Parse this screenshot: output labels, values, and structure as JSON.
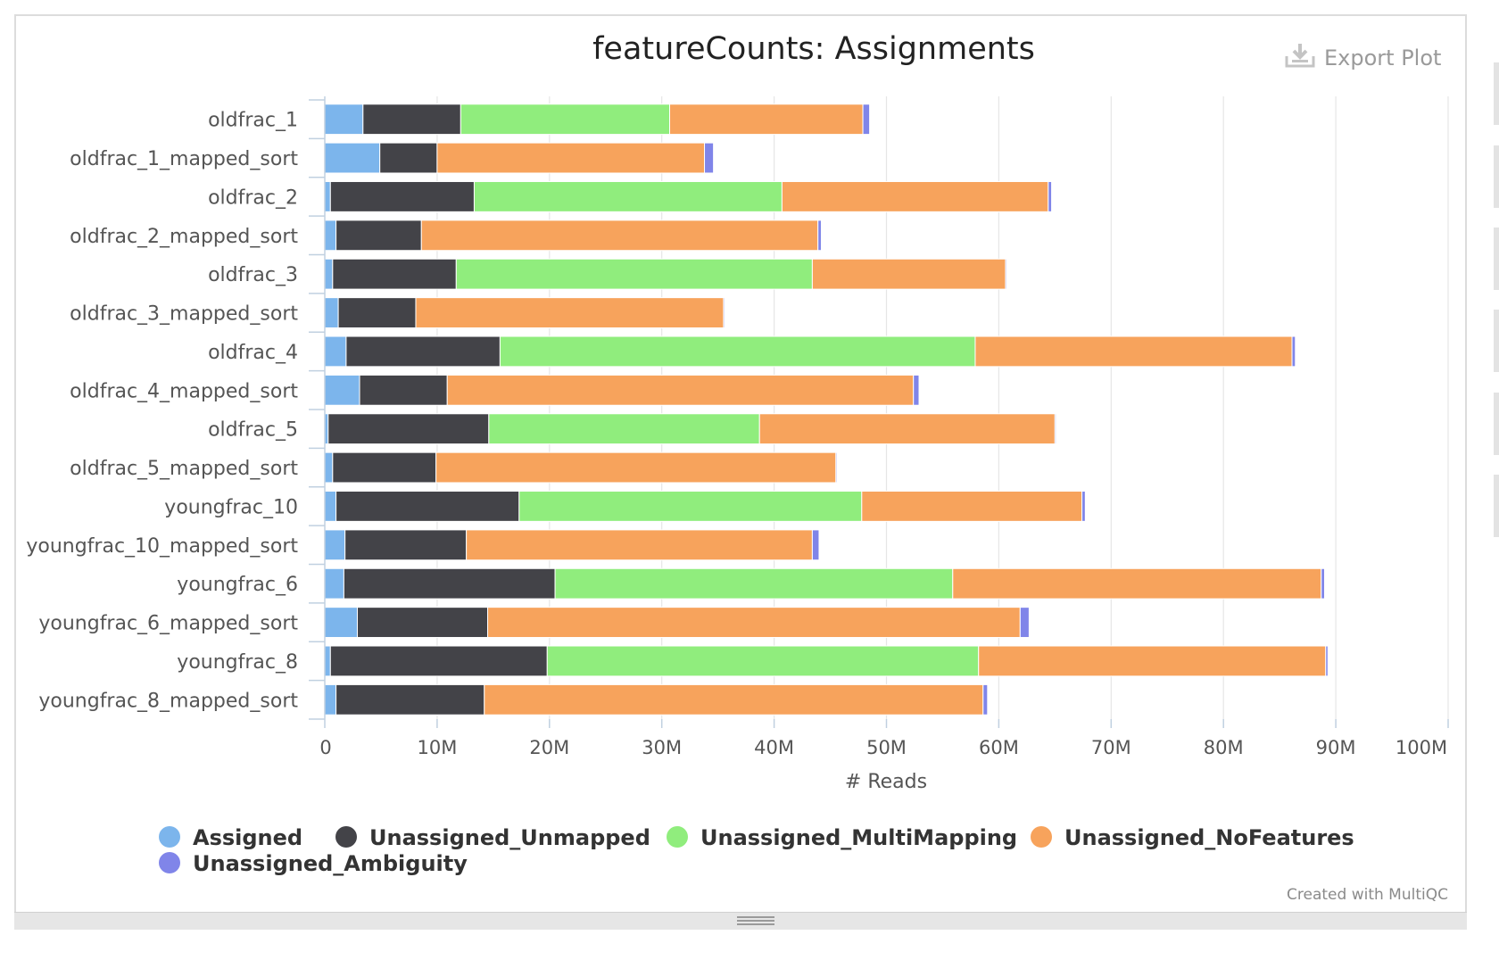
{
  "export": {
    "label": "Export Plot",
    "icon": "download-icon"
  },
  "credit": "Created with MultiQC",
  "colors": {
    "Assigned": "#7cb5ec",
    "Unassigned_Unmapped": "#434348",
    "Unassigned_MultiMapping": "#90ed7d",
    "Unassigned_NoFeatures": "#f7a35c",
    "Unassigned_Ambiguity": "#8085e9"
  },
  "chart_data": {
    "type": "bar",
    "orientation": "horizontal",
    "stacked": true,
    "title": "featureCounts: Assignments",
    "xlabel": "# Reads",
    "ylabel": "",
    "xlim": [
      0,
      100000000
    ],
    "xticks": [
      "0",
      "10M",
      "20M",
      "30M",
      "40M",
      "50M",
      "60M",
      "70M",
      "80M",
      "90M",
      "100M"
    ],
    "grid": true,
    "legend_position": "bottom",
    "categories": [
      "oldfrac_1",
      "oldfrac_1_mapped_sort",
      "oldfrac_2",
      "oldfrac_2_mapped_sort",
      "oldfrac_3",
      "oldfrac_3_mapped_sort",
      "oldfrac_4",
      "oldfrac_4_mapped_sort",
      "oldfrac_5",
      "oldfrac_5_mapped_sort",
      "youngfrac_10",
      "youngfrac_10_mapped_sort",
      "youngfrac_6",
      "youngfrac_6_mapped_sort",
      "youngfrac_8",
      "youngfrac_8_mapped_sort"
    ],
    "series": [
      {
        "name": "Assigned",
        "values": [
          3400000,
          4900000,
          500000,
          1000000,
          700000,
          1200000,
          1900000,
          3100000,
          300000,
          700000,
          1000000,
          1800000,
          1700000,
          2900000,
          500000,
          1000000
        ]
      },
      {
        "name": "Unassigned_Unmapped",
        "values": [
          8700000,
          5100000,
          12800000,
          7600000,
          11000000,
          6900000,
          13700000,
          7800000,
          14300000,
          9200000,
          16300000,
          10800000,
          18800000,
          11600000,
          19300000,
          13200000
        ]
      },
      {
        "name": "Unassigned_MultiMapping",
        "values": [
          18600000,
          0,
          27400000,
          0,
          31700000,
          0,
          42300000,
          0,
          24100000,
          0,
          30500000,
          0,
          35400000,
          0,
          38400000,
          0
        ]
      },
      {
        "name": "Unassigned_NoFeatures",
        "values": [
          17200000,
          23800000,
          23700000,
          35300000,
          17200000,
          27400000,
          28200000,
          41500000,
          26300000,
          35600000,
          19600000,
          30800000,
          32800000,
          47400000,
          30900000,
          44400000
        ]
      },
      {
        "name": "Unassigned_Ambiguity",
        "values": [
          600000,
          800000,
          300000,
          300000,
          100000,
          100000,
          300000,
          500000,
          100000,
          100000,
          300000,
          600000,
          300000,
          800000,
          200000,
          400000
        ]
      }
    ]
  }
}
